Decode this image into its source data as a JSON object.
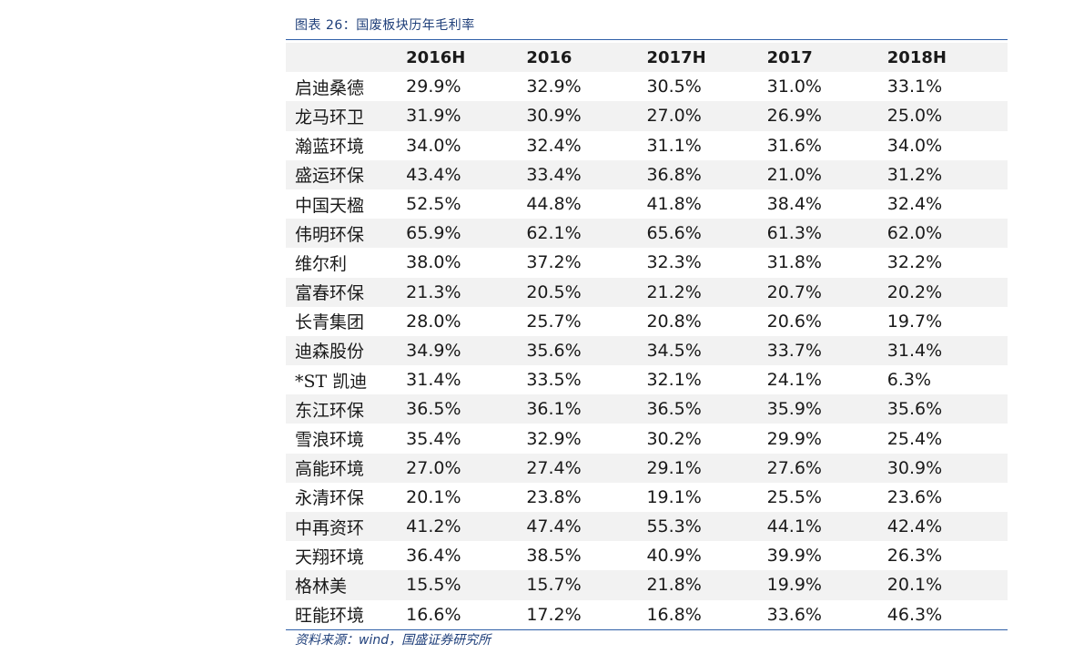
{
  "caption": "图表 26：国废板块历年毛利率",
  "columns": [
    "",
    "2016H",
    "2016",
    "2017H",
    "2017",
    "2018H"
  ],
  "rows": [
    {
      "name": "启迪桑德",
      "values": [
        "29.9%",
        "32.9%",
        "30.5%",
        "31.0%",
        "33.1%"
      ]
    },
    {
      "name": "龙马环卫",
      "values": [
        "31.9%",
        "30.9%",
        "27.0%",
        "26.9%",
        "25.0%"
      ]
    },
    {
      "name": "瀚蓝环境",
      "values": [
        "34.0%",
        "32.4%",
        "31.1%",
        "31.6%",
        "34.0%"
      ]
    },
    {
      "name": "盛运环保",
      "values": [
        "43.4%",
        "33.4%",
        "36.8%",
        "21.0%",
        "31.2%"
      ]
    },
    {
      "name": "中国天楹",
      "values": [
        "52.5%",
        "44.8%",
        "41.8%",
        "38.4%",
        "32.4%"
      ]
    },
    {
      "name": "伟明环保",
      "values": [
        "65.9%",
        "62.1%",
        "65.6%",
        "61.3%",
        "62.0%"
      ]
    },
    {
      "name": "维尔利",
      "values": [
        "38.0%",
        "37.2%",
        "32.3%",
        "31.8%",
        "32.2%"
      ]
    },
    {
      "name": "富春环保",
      "values": [
        "21.3%",
        "20.5%",
        "21.2%",
        "20.7%",
        "20.2%"
      ]
    },
    {
      "name": "长青集团",
      "values": [
        "28.0%",
        "25.7%",
        "20.8%",
        "20.6%",
        "19.7%"
      ]
    },
    {
      "name": "迪森股份",
      "values": [
        "34.9%",
        "35.6%",
        "34.5%",
        "33.7%",
        "31.4%"
      ]
    },
    {
      "name": "*ST 凯迪",
      "values": [
        "31.4%",
        "33.5%",
        "32.1%",
        "24.1%",
        "6.3%"
      ]
    },
    {
      "name": "东江环保",
      "values": [
        "36.5%",
        "36.1%",
        "36.5%",
        "35.9%",
        "35.6%"
      ]
    },
    {
      "name": "雪浪环境",
      "values": [
        "35.4%",
        "32.9%",
        "30.2%",
        "29.9%",
        "25.4%"
      ]
    },
    {
      "name": "高能环境",
      "values": [
        "27.0%",
        "27.4%",
        "29.1%",
        "27.6%",
        "30.9%"
      ]
    },
    {
      "name": "永清环保",
      "values": [
        "20.1%",
        "23.8%",
        "19.1%",
        "25.5%",
        "23.6%"
      ]
    },
    {
      "name": "中再资环",
      "values": [
        "41.2%",
        "47.4%",
        "55.3%",
        "44.1%",
        "42.4%"
      ]
    },
    {
      "name": "天翔环境",
      "values": [
        "36.4%",
        "38.5%",
        "40.9%",
        "39.9%",
        "26.3%"
      ]
    },
    {
      "name": "格林美",
      "values": [
        "15.5%",
        "15.7%",
        "21.8%",
        "19.9%",
        "20.1%"
      ]
    },
    {
      "name": "旺能环境",
      "values": [
        "16.6%",
        "17.2%",
        "16.8%",
        "33.6%",
        "46.3%"
      ]
    }
  ],
  "source": "资料来源：wind，国盛证券研究所",
  "colors": {
    "accent": "#2f5fa7",
    "caption_text": "#1f3f7a",
    "row_shade": "#f2f2f2"
  }
}
